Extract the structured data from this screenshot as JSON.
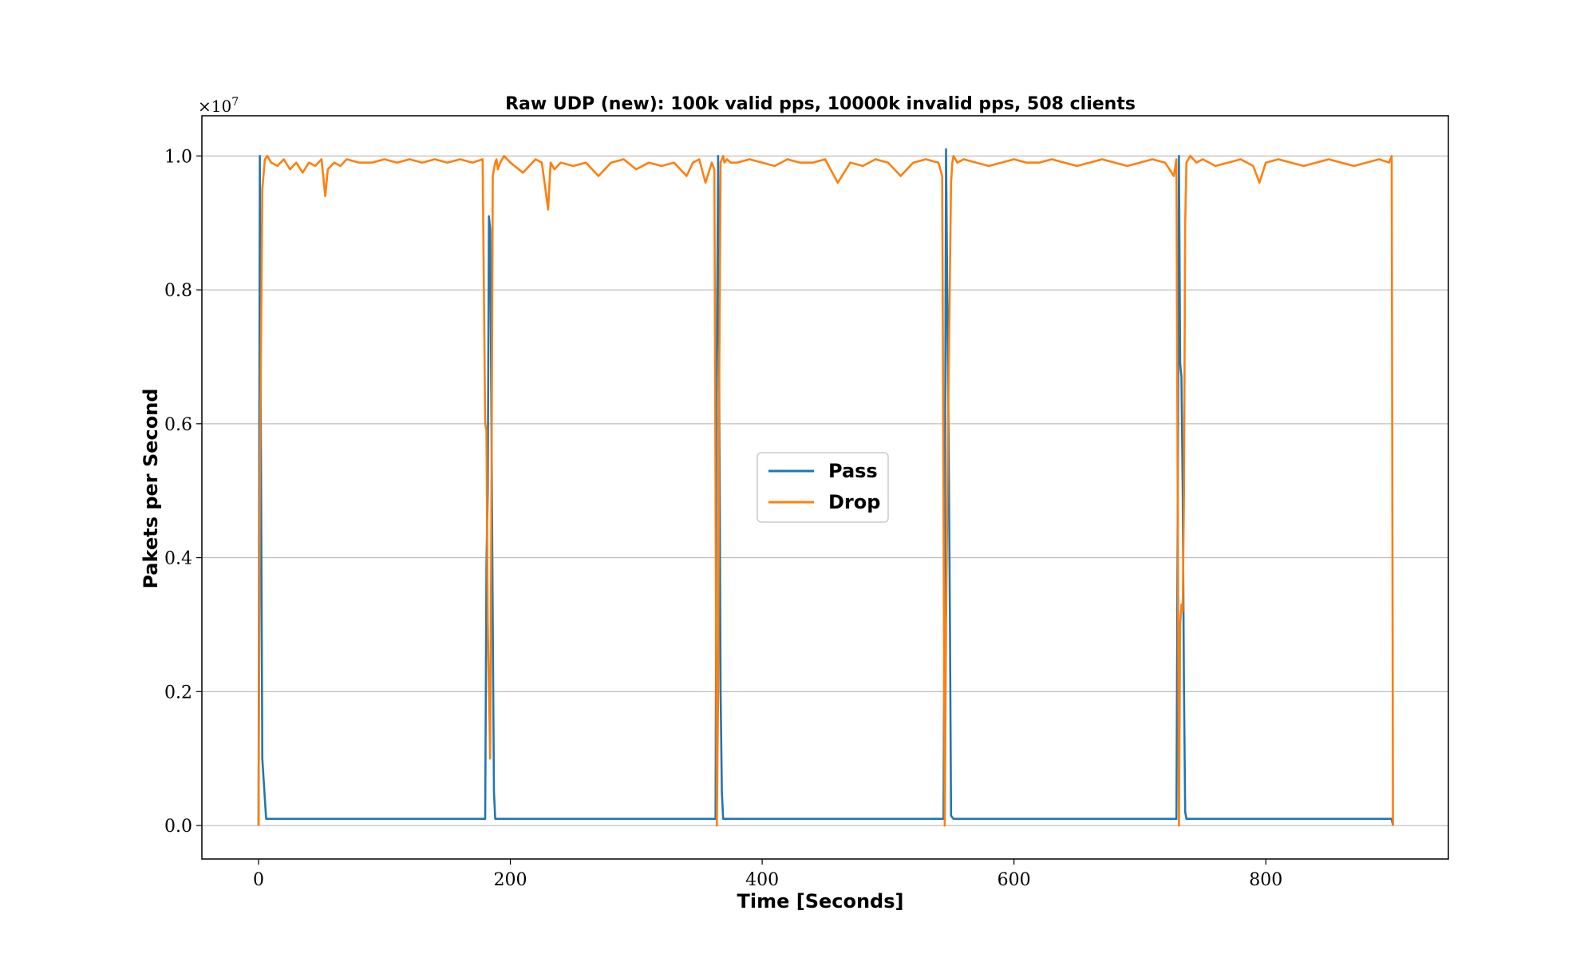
{
  "chart_data": {
    "type": "line",
    "title": "Raw UDP (new): 100k valid pps, 10000k invalid pps, 508 clients",
    "xlabel": "Time [Seconds]",
    "ylabel": "Pakets per Second",
    "y_scale_label": "×10^7",
    "xlim": [
      -45,
      945
    ],
    "ylim": [
      -0.05,
      1.06
    ],
    "y_multiplier": 10000000,
    "xticks": [
      0,
      200,
      400,
      600,
      800
    ],
    "xtick_labels": [
      "0",
      "200",
      "400",
      "600",
      "800"
    ],
    "yticks": [
      0.0,
      0.2,
      0.4,
      0.6,
      0.8,
      1.0
    ],
    "ytick_labels": [
      "0.0",
      "0.2",
      "0.4",
      "0.6",
      "0.8",
      "1.0"
    ],
    "grid": "horizontal",
    "legend_position": "center",
    "series": [
      {
        "name": "Pass",
        "color": "#1f77b4",
        "x": [
          0,
          1,
          2,
          3,
          6,
          180,
          181,
          182,
          183,
          184,
          185,
          186,
          187,
          188,
          189,
          363,
          364,
          365,
          366,
          367,
          368,
          369,
          544,
          545,
          546,
          547,
          548,
          549,
          550,
          551,
          552,
          729,
          730,
          731,
          732,
          733,
          734,
          735,
          736,
          737,
          900,
          901
        ],
        "y": [
          0.0,
          1.0,
          0.5,
          0.1,
          0.01,
          0.01,
          0.39,
          0.5,
          0.91,
          0.89,
          0.6,
          0.3,
          0.05,
          0.01,
          0.01,
          0.01,
          0.7,
          1.0,
          0.6,
          0.2,
          0.05,
          0.01,
          0.01,
          0.4,
          1.01,
          0.8,
          0.6,
          0.34,
          0.015,
          0.012,
          0.01,
          0.01,
          0.45,
          1.0,
          0.69,
          0.67,
          0.5,
          0.2,
          0.02,
          0.01,
          0.01,
          0.0
        ]
      },
      {
        "name": "Drop",
        "color": "#ff7f0e",
        "x": [
          0,
          1,
          3,
          5,
          7,
          10,
          15,
          20,
          25,
          30,
          35,
          40,
          45,
          50,
          53,
          55,
          60,
          65,
          70,
          80,
          90,
          100,
          110,
          120,
          130,
          140,
          150,
          160,
          170,
          178,
          180,
          181,
          182,
          184,
          185,
          186,
          187,
          188,
          189,
          190,
          192,
          195,
          200,
          210,
          220,
          225,
          230,
          232,
          235,
          240,
          250,
          260,
          270,
          280,
          290,
          300,
          310,
          320,
          330,
          340,
          345,
          350,
          355,
          360,
          362,
          363,
          364,
          365,
          366,
          367,
          369,
          370,
          372,
          375,
          380,
          390,
          400,
          410,
          420,
          430,
          440,
          450,
          460,
          470,
          480,
          490,
          500,
          510,
          520,
          530,
          540,
          543,
          544,
          545,
          546,
          548,
          550,
          551,
          552,
          555,
          560,
          570,
          580,
          590,
          600,
          610,
          620,
          630,
          640,
          650,
          660,
          670,
          680,
          690,
          700,
          710,
          720,
          727,
          729,
          730,
          731,
          732,
          733,
          734,
          735,
          736,
          737,
          740,
          745,
          750,
          760,
          770,
          780,
          790,
          795,
          800,
          810,
          820,
          830,
          840,
          850,
          860,
          870,
          880,
          890,
          898,
          900,
          901
        ],
        "y": [
          0.0,
          0.5,
          0.95,
          0.995,
          1.0,
          0.99,
          0.985,
          0.995,
          0.98,
          0.99,
          0.975,
          0.99,
          0.985,
          0.995,
          0.94,
          0.98,
          0.99,
          0.985,
          0.995,
          0.99,
          0.99,
          0.995,
          0.99,
          0.995,
          0.99,
          0.995,
          0.99,
          0.995,
          0.99,
          0.995,
          0.6,
          0.59,
          0.3,
          0.1,
          0.5,
          0.97,
          0.98,
          0.99,
          0.995,
          0.98,
          0.99,
          1.0,
          0.99,
          0.975,
          0.995,
          0.99,
          0.92,
          0.99,
          0.98,
          0.99,
          0.985,
          0.99,
          0.97,
          0.99,
          0.995,
          0.98,
          0.99,
          0.985,
          0.99,
          0.97,
          0.99,
          0.995,
          0.96,
          0.99,
          0.98,
          0.5,
          0.0,
          0.2,
          0.7,
          0.99,
          1.0,
          0.99,
          0.995,
          0.99,
          0.99,
          0.995,
          0.99,
          0.985,
          0.995,
          0.99,
          0.99,
          0.995,
          0.96,
          0.99,
          0.985,
          0.995,
          0.99,
          0.97,
          0.99,
          0.995,
          0.99,
          0.97,
          0.5,
          0.0,
          0.3,
          0.65,
          0.96,
          0.99,
          1.0,
          0.99,
          0.995,
          0.99,
          0.985,
          0.99,
          0.995,
          0.99,
          0.99,
          0.995,
          0.99,
          0.985,
          0.99,
          0.995,
          0.99,
          0.985,
          0.99,
          0.995,
          0.99,
          0.97,
          0.995,
          0.5,
          0.0,
          0.3,
          0.33,
          0.32,
          0.5,
          0.9,
          0.99,
          1.0,
          0.99,
          0.995,
          0.985,
          0.99,
          0.995,
          0.985,
          0.96,
          0.99,
          0.995,
          0.99,
          0.985,
          0.99,
          0.995,
          0.99,
          0.985,
          0.99,
          0.995,
          0.99,
          1.0,
          0.0
        ]
      }
    ]
  }
}
